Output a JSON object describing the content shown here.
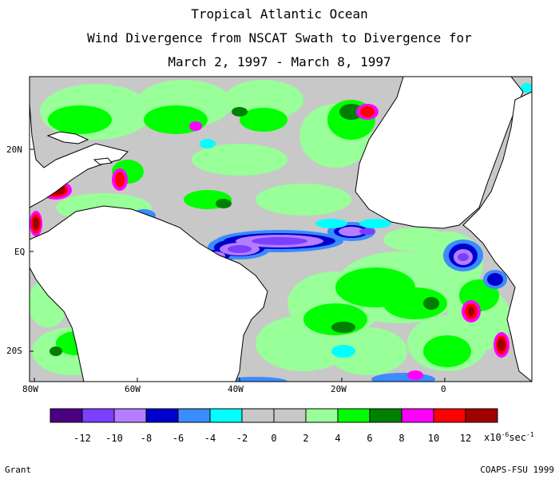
{
  "title": {
    "line1": "Tropical Atlantic Ocean",
    "line2": "Wind Divergence from NSCAT Swath to Divergence for",
    "line3": "March 2, 1997 - March 8, 1997"
  },
  "axes": {
    "lon_labels": [
      "80W",
      "60W",
      "40W",
      "20W",
      "0"
    ],
    "lat_labels": [
      "20N",
      "EQ",
      "20S"
    ]
  },
  "colorbar": {
    "colors": [
      "#4b0082",
      "#7b3fff",
      "#b57dff",
      "#0000cc",
      "#3a8cff",
      "#00ffff",
      "#c8c8c8",
      "#c8c8c8",
      "#99ff99",
      "#00ff00",
      "#008000",
      "#ff00ff",
      "#ff0000",
      "#a00000"
    ],
    "labels": [
      "-12",
      "-10",
      "-8",
      "-6",
      "-4",
      "-2",
      "0",
      "2",
      "4",
      "6",
      "8",
      "10",
      "12"
    ],
    "units_prefix": "x10",
    "units_exp": "-6",
    "units_suffix": "sec",
    "units_suffix_exp": "-1"
  },
  "footer": {
    "left": "Grant",
    "right": "COAPS-FSU 1999"
  }
}
